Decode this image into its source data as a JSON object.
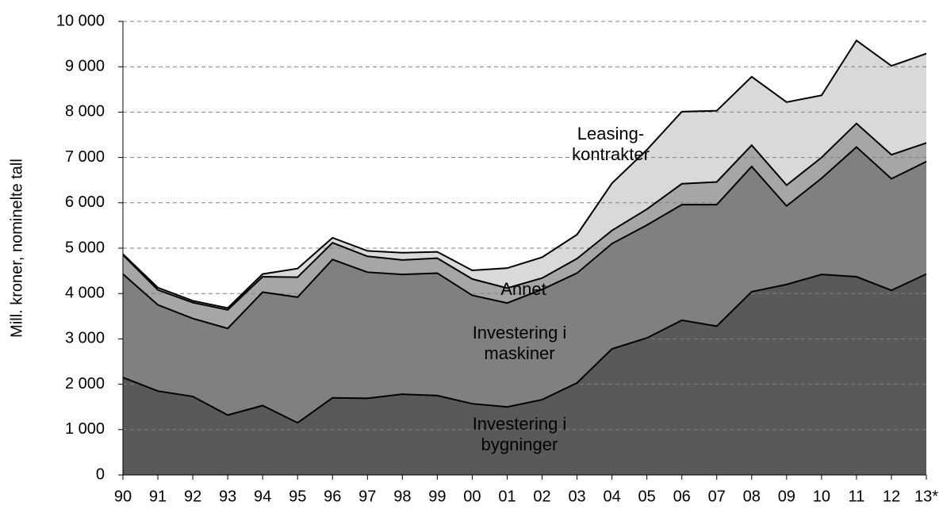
{
  "chart_data": {
    "type": "stacked_area",
    "y_label": "Mill. kroner, nominelte tall",
    "categories": [
      "90",
      "91",
      "92",
      "93",
      "94",
      "95",
      "96",
      "97",
      "98",
      "99",
      "00",
      "01",
      "02",
      "03",
      "04",
      "05",
      "06",
      "07",
      "08",
      "09",
      "10",
      "11",
      "12",
      "13*"
    ],
    "series": [
      {
        "name": "Investering i bygninger",
        "color": "#595959",
        "values": [
          2150,
          1850,
          1730,
          1320,
          1530,
          1150,
          1700,
          1690,
          1780,
          1750,
          1570,
          1500,
          1660,
          2030,
          2780,
          3020,
          3410,
          3280,
          4040,
          4200,
          4420,
          4370,
          4070,
          4430
        ]
      },
      {
        "name": "Investering i maskiner",
        "color": "#808080",
        "values": [
          2280,
          1900,
          1720,
          1910,
          2500,
          2770,
          3050,
          2780,
          2640,
          2700,
          2390,
          2290,
          2430,
          2420,
          2320,
          2490,
          2550,
          2680,
          2760,
          1730,
          2120,
          2860,
          2460,
          2480
        ]
      },
      {
        "name": "Annet",
        "color": "#a6a6a6",
        "values": [
          420,
          330,
          350,
          410,
          340,
          440,
          370,
          350,
          320,
          330,
          360,
          330,
          250,
          320,
          290,
          350,
          460,
          500,
          470,
          460,
          460,
          520,
          530,
          410
        ]
      },
      {
        "name": "Leasing-kontrakter",
        "color": "#d9d9d9",
        "values": [
          20,
          50,
          40,
          40,
          60,
          190,
          110,
          120,
          160,
          140,
          190,
          440,
          460,
          530,
          1040,
          1310,
          1590,
          1570,
          1510,
          1830,
          1370,
          1830,
          1960,
          1970
        ]
      }
    ],
    "ylim": [
      0,
      10000
    ],
    "yticks": [
      0,
      {
        "value": 1000,
        "label": "1 000"
      },
      {
        "value": 2000,
        "label": "2 000"
      },
      {
        "value": 3000,
        "label": "3 000"
      },
      {
        "value": 4000,
        "label": "4 000"
      },
      {
        "value": 5000,
        "label": "5 000"
      },
      {
        "value": 6000,
        "label": "6 000"
      },
      {
        "value": 7000,
        "label": "7 000"
      },
      {
        "value": 8000,
        "label": "8 000"
      },
      {
        "value": 9000,
        "label": "9 000"
      },
      {
        "value": 10000,
        "label": "10 000"
      }
    ],
    "grid": true
  }
}
